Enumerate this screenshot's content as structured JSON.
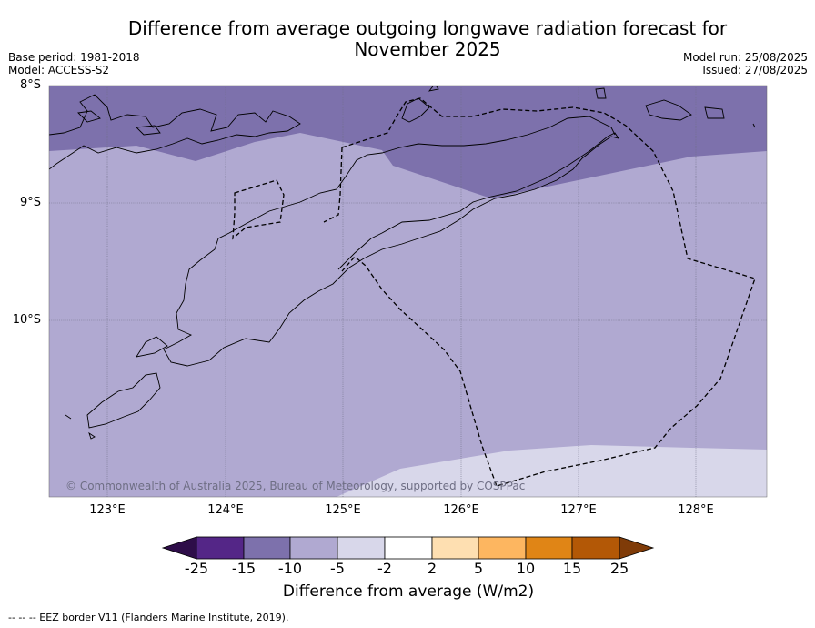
{
  "title": "Difference from average outgoing longwave radiation forecast for November 2025",
  "meta_left": {
    "base_period": "Base period: 1981-2018",
    "model": "Model: ACCESS-S2"
  },
  "meta_right": {
    "model_run": "Model run: 25/08/2025",
    "issued": "Issued: 27/08/2025"
  },
  "map": {
    "lat_labels": [
      "8°S",
      "9°S",
      "10°S"
    ],
    "lon_labels": [
      "123°E",
      "124°E",
      "125°E",
      "126°E",
      "127°E",
      "128°E"
    ],
    "credit": "© Commonwealth of Australia 2025, Bureau of Meteorology, supported by COSPPac",
    "colors": {
      "band_-10_-15": "#7d71ac",
      "band_-5_-10": "#b0a9d1",
      "band_-2_-5": "#d8d7ea"
    }
  },
  "colorbar": {
    "ticks": [
      "-25",
      "-15",
      "-10",
      "-5",
      "-2",
      "2",
      "5",
      "10",
      "15",
      "25"
    ],
    "colors": [
      "#2e0d49",
      "#542687",
      "#7d71ac",
      "#b0a9d1",
      "#d8d7ea",
      "#ffffff",
      "#fedfb1",
      "#fdb660",
      "#e08516",
      "#b35806",
      "#7f3b08"
    ],
    "label": "Difference from average (W/m2)"
  },
  "footnote": "--  --  -- EEZ border V11 (Flanders Marine Institute, 2019)."
}
